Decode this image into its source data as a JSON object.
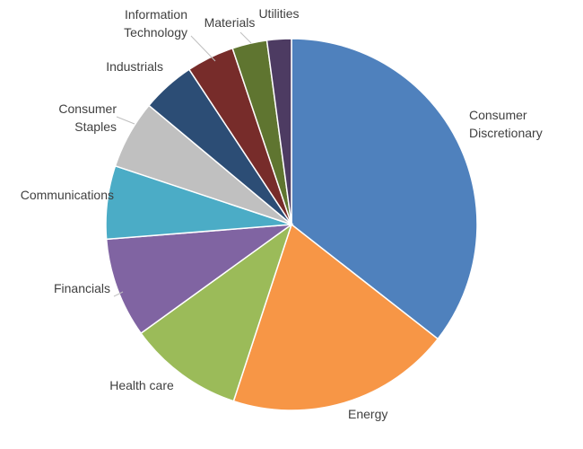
{
  "chart_data": {
    "type": "pie",
    "title": "",
    "start_angle_deg": 0,
    "direction": "clockwise",
    "slices": [
      {
        "label": [
          "Consumer",
          "Discretionary"
        ],
        "value": 35.2,
        "color": "#4f81bd"
      },
      {
        "label": [
          "Energy"
        ],
        "value": 19.3,
        "color": "#f79646"
      },
      {
        "label": [
          "Health care"
        ],
        "value": 9.9,
        "color": "#9bbb59"
      },
      {
        "label": [
          "Financials"
        ],
        "value": 8.6,
        "color": "#8064a2"
      },
      {
        "label": [
          "Communications"
        ],
        "value": 6.3,
        "color": "#4bacc6"
      },
      {
        "label": [
          "Consumer",
          "Staples"
        ],
        "value": 5.9,
        "color": "#c0c0c0"
      },
      {
        "label": [
          "Industrials"
        ],
        "value": 4.6,
        "color": "#2c4d75"
      },
      {
        "label": [
          "Information",
          "Technology"
        ],
        "value": 4.1,
        "color": "#772c2a"
      },
      {
        "label": [
          "Materials"
        ],
        "value": 3.0,
        "color": "#5f7530"
      },
      {
        "label": [
          "Utilities"
        ],
        "value": 2.1,
        "color": "#4d3b62"
      }
    ]
  }
}
